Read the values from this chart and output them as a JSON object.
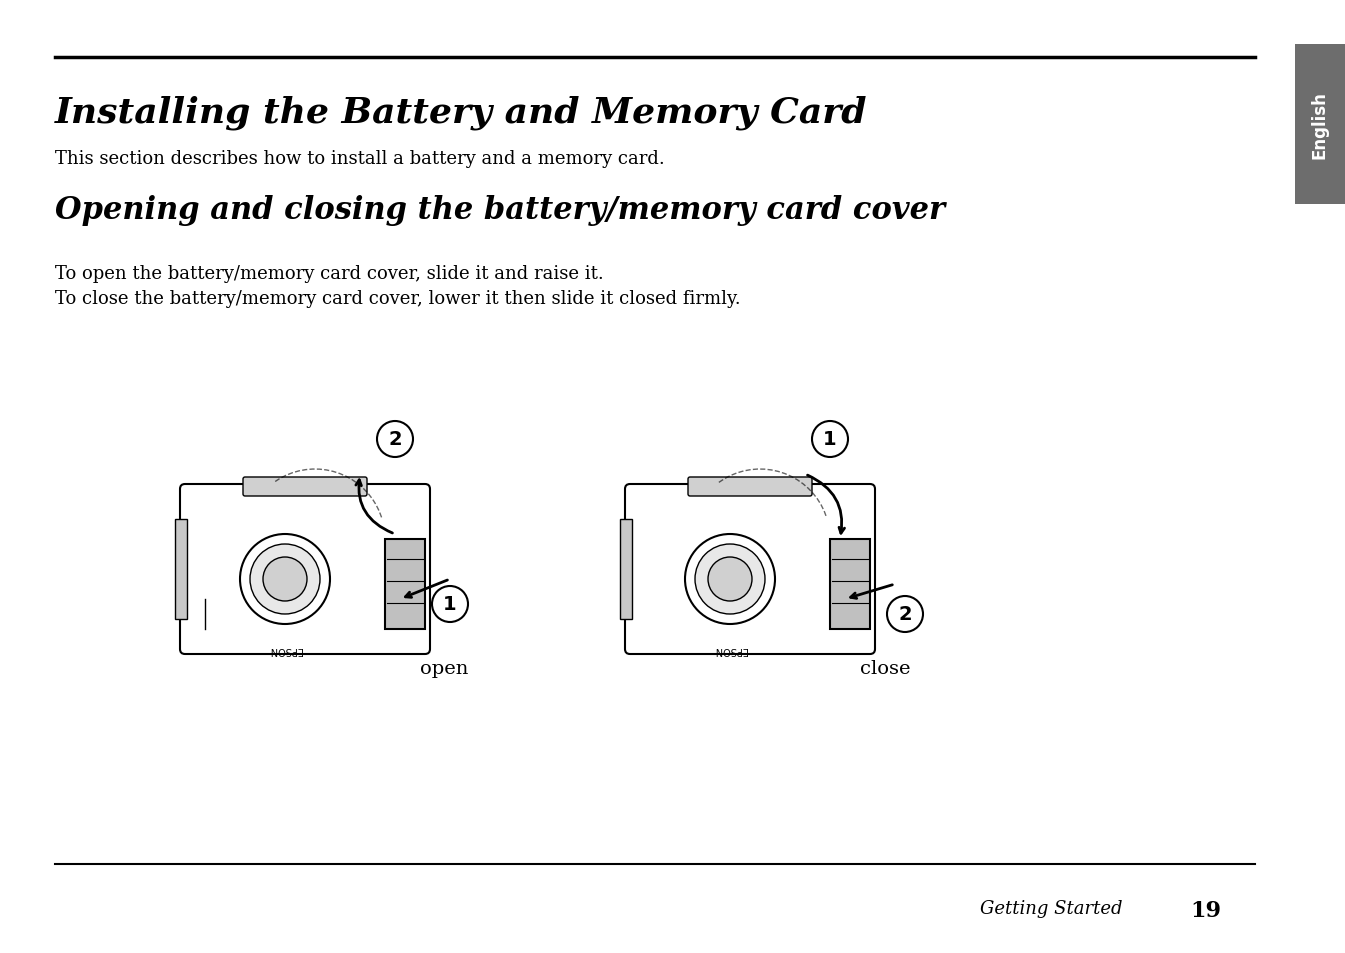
{
  "title": "Installing the Battery and Memory Card",
  "subtitle": "Opening and closing the battery/memory card cover",
  "body_text_1": "This section describes how to install a battery and a memory card.",
  "body_text_2": "To open the battery/memory card cover, slide it and raise it.",
  "body_text_3": "To close the battery/memory card cover, lower it then slide it closed firmly.",
  "label_open": "open",
  "label_close": "close",
  "footer_text": "Getting Started",
  "footer_page": "19",
  "sidebar_text": "English",
  "sidebar_color": "#6d6d6d",
  "bg_color": "#ffffff",
  "text_color": "#000000",
  "sidebar_text_color": "#ffffff"
}
